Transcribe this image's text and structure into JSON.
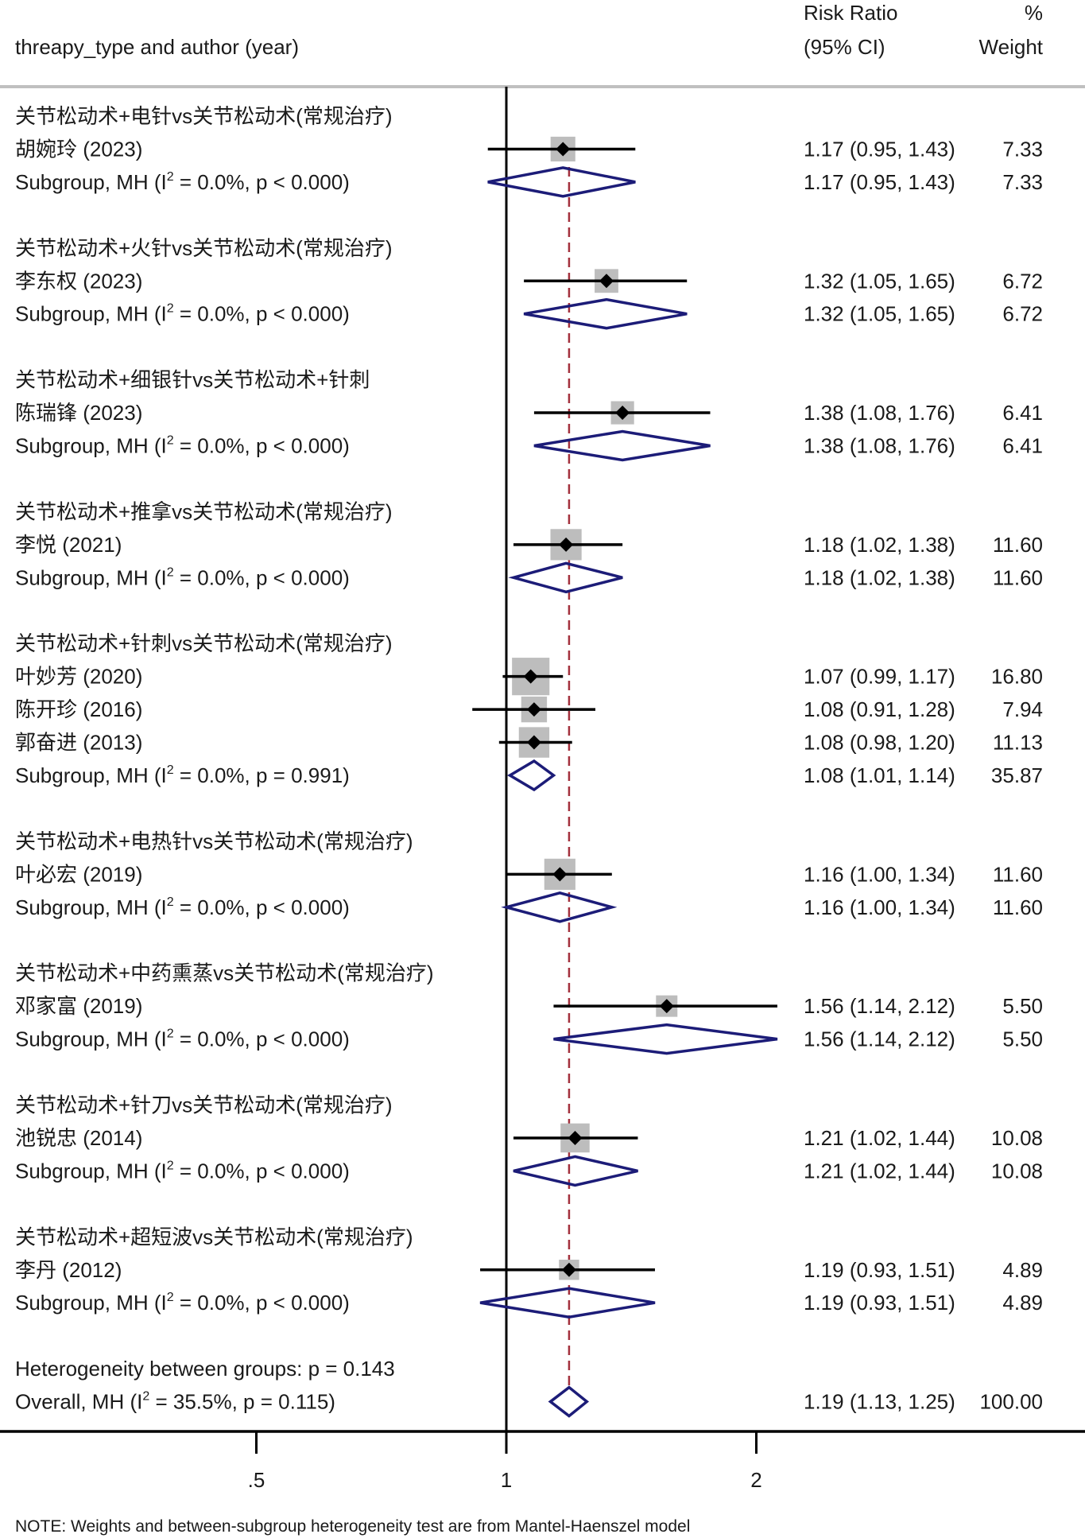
{
  "chart_data": {
    "type": "forest",
    "xscale": "log",
    "xticks": [
      0.5,
      1,
      2
    ],
    "tick_labels": [
      ".5",
      "1",
      "2"
    ],
    "null_line": 1,
    "overall_line": 1.19,
    "header": {
      "left": "threapy_type and author (year)",
      "rr_line1": "Risk Ratio",
      "rr_line2": "(95% CI)",
      "w_line1": "%",
      "w_line2": "Weight"
    },
    "subgroup_prefix": "Subgroup, MH (I",
    "overall_prefix": "Overall, MH (I",
    "sup": "2",
    "groups": [
      {
        "label": "关节松动术+电针vs关节松动术(常规治疗)",
        "studies": [
          {
            "author": "胡婉玲 (2023)",
            "rr": 1.17,
            "lo": 0.95,
            "hi": 1.43,
            "weight": 7.33,
            "text": "1.17 (0.95, 1.43)",
            "weight_text": "7.33"
          }
        ],
        "subgroup": {
          "rr": 1.17,
          "lo": 0.95,
          "hi": 1.43,
          "stats": " = 0.0%, p < 0.000)",
          "text": "1.17 (0.95, 1.43)",
          "weight_text": "7.33"
        }
      },
      {
        "label": "关节松动术+火针vs关节松动术(常规治疗)",
        "studies": [
          {
            "author": "李东权 (2023)",
            "rr": 1.32,
            "lo": 1.05,
            "hi": 1.65,
            "weight": 6.72,
            "text": "1.32 (1.05, 1.65)",
            "weight_text": "6.72"
          }
        ],
        "subgroup": {
          "rr": 1.32,
          "lo": 1.05,
          "hi": 1.65,
          "stats": " = 0.0%, p < 0.000)",
          "text": "1.32 (1.05, 1.65)",
          "weight_text": "6.72"
        }
      },
      {
        "label": "关节松动术+细银针vs关节松动术+针刺",
        "studies": [
          {
            "author": "陈瑞锋 (2023)",
            "rr": 1.38,
            "lo": 1.08,
            "hi": 1.76,
            "weight": 6.41,
            "text": "1.38 (1.08, 1.76)",
            "weight_text": "6.41"
          }
        ],
        "subgroup": {
          "rr": 1.38,
          "lo": 1.08,
          "hi": 1.76,
          "stats": " = 0.0%, p < 0.000)",
          "text": "1.38 (1.08, 1.76)",
          "weight_text": "6.41"
        }
      },
      {
        "label": "关节松动术+推拿vs关节松动术(常规治疗)",
        "studies": [
          {
            "author": "李悦 (2021)",
            "rr": 1.18,
            "lo": 1.02,
            "hi": 1.38,
            "weight": 11.6,
            "text": "1.18 (1.02, 1.38)",
            "weight_text": "11.60"
          }
        ],
        "subgroup": {
          "rr": 1.18,
          "lo": 1.02,
          "hi": 1.38,
          "stats": " = 0.0%, p < 0.000)",
          "text": "1.18 (1.02, 1.38)",
          "weight_text": "11.60"
        }
      },
      {
        "label": "关节松动术+针刺vs关节松动术(常规治疗)",
        "studies": [
          {
            "author": "叶妙芳 (2020)",
            "rr": 1.07,
            "lo": 0.99,
            "hi": 1.17,
            "weight": 16.8,
            "text": "1.07 (0.99, 1.17)",
            "weight_text": "16.80"
          },
          {
            "author": "陈开珍 (2016)",
            "rr": 1.08,
            "lo": 0.91,
            "hi": 1.28,
            "weight": 7.94,
            "text": "1.08 (0.91, 1.28)",
            "weight_text": "7.94"
          },
          {
            "author": "郭奋进 (2013)",
            "rr": 1.08,
            "lo": 0.98,
            "hi": 1.2,
            "weight": 11.13,
            "text": "1.08 (0.98, 1.20)",
            "weight_text": "11.13"
          }
        ],
        "subgroup": {
          "rr": 1.08,
          "lo": 1.01,
          "hi": 1.14,
          "stats": " = 0.0%, p = 0.991)",
          "text": "1.08 (1.01, 1.14)",
          "weight_text": "35.87"
        }
      },
      {
        "label": "关节松动术+电热针vs关节松动术(常规治疗)",
        "studies": [
          {
            "author": "叶必宏 (2019)",
            "rr": 1.16,
            "lo": 1.0,
            "hi": 1.34,
            "weight": 11.6,
            "text": "1.16 (1.00, 1.34)",
            "weight_text": "11.60"
          }
        ],
        "subgroup": {
          "rr": 1.16,
          "lo": 1.0,
          "hi": 1.34,
          "stats": " = 0.0%, p < 0.000)",
          "text": "1.16 (1.00, 1.34)",
          "weight_text": "11.60"
        }
      },
      {
        "label": "关节松动术+中药熏蒸vs关节松动术(常规治疗)",
        "studies": [
          {
            "author": "邓家富 (2019)",
            "rr": 1.56,
            "lo": 1.14,
            "hi": 2.12,
            "weight": 5.5,
            "text": "1.56 (1.14, 2.12)",
            "weight_text": "5.50"
          }
        ],
        "subgroup": {
          "rr": 1.56,
          "lo": 1.14,
          "hi": 2.12,
          "stats": " = 0.0%, p < 0.000)",
          "text": "1.56 (1.14, 2.12)",
          "weight_text": "5.50"
        }
      },
      {
        "label": "关节松动术+针刀vs关节松动术(常规治疗)",
        "studies": [
          {
            "author": "池锐忠 (2014)",
            "rr": 1.21,
            "lo": 1.02,
            "hi": 1.44,
            "weight": 10.08,
            "text": "1.21 (1.02, 1.44)",
            "weight_text": "10.08"
          }
        ],
        "subgroup": {
          "rr": 1.21,
          "lo": 1.02,
          "hi": 1.44,
          "stats": " = 0.0%, p < 0.000)",
          "text": "1.21 (1.02, 1.44)",
          "weight_text": "10.08"
        }
      },
      {
        "label": "关节松动术+超短波vs关节松动术(常规治疗)",
        "studies": [
          {
            "author": "李丹 (2012)",
            "rr": 1.19,
            "lo": 0.93,
            "hi": 1.51,
            "weight": 4.89,
            "text": "1.19 (0.93, 1.51)",
            "weight_text": "4.89"
          }
        ],
        "subgroup": {
          "rr": 1.19,
          "lo": 0.93,
          "hi": 1.51,
          "stats": " = 0.0%, p < 0.000)",
          "text": "1.19 (0.93, 1.51)",
          "weight_text": "4.89"
        }
      }
    ],
    "heterogeneity": "Heterogeneity between groups: p = 0.143",
    "overall": {
      "rr": 1.19,
      "lo": 1.13,
      "hi": 1.25,
      "stats": " = 35.5%, p = 0.115)",
      "text": "1.19 (1.13, 1.25)",
      "weight_text": "100.00"
    },
    "note": "NOTE: Weights and between-subgroup heterogeneity test are from Mantel-Haenszel model",
    "colors": {
      "diamond": "#1c1c78",
      "box": "#bdbdbd",
      "ci": "#000000",
      "overall_line": "#a3303c",
      "separator": "#c0c0c0"
    }
  }
}
